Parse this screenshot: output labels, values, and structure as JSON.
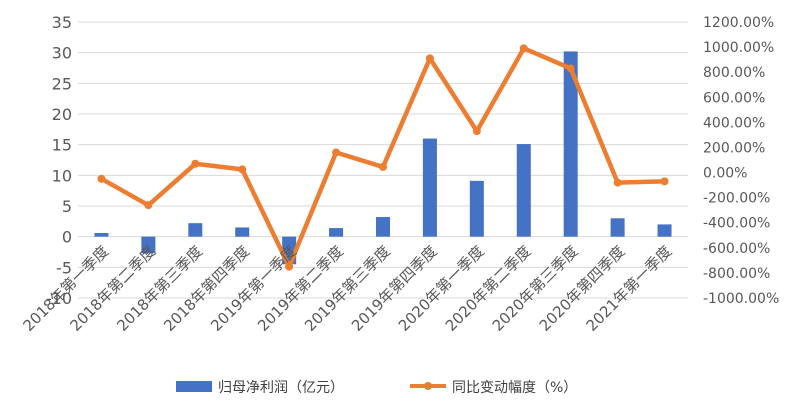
{
  "chart_data": {
    "type": "bar",
    "categories": [
      "2018年第一季度",
      "2018年第二季度",
      "2018年第三季度",
      "2018年第四季度",
      "2019年第一季度",
      "2019年第二季度",
      "2019年第三季度",
      "2019年第四季度",
      "2020年第一季度",
      "2020年第二季度",
      "2020年第三季度",
      "2020年第四季度",
      "2021年第一季度"
    ],
    "series": [
      {
        "name": "归母净利润（亿元）",
        "type": "bar",
        "axis": "left",
        "color": "#4472C4",
        "values": [
          0.6,
          -2.7,
          2.2,
          1.5,
          -4.5,
          1.4,
          3.2,
          16.0,
          9.1,
          15.1,
          30.2,
          3.0,
          2.0
        ]
      },
      {
        "name": "同比变动幅度（%）",
        "type": "line",
        "axis": "right",
        "color": "#ED7D31",
        "values": [
          -50,
          -260,
          70,
          25,
          -750,
          160,
          45,
          910,
          330,
          990,
          830,
          -80,
          -70
        ]
      }
    ],
    "y_left": {
      "min": -10,
      "max": 35,
      "step": 5,
      "tick_labels": [
        "35",
        "30",
        "25",
        "20",
        "15",
        "10",
        "5",
        "0",
        "-5",
        "-10"
      ]
    },
    "y_right": {
      "min": -1000,
      "max": 1200,
      "step": 200,
      "tick_labels": [
        "1200.00%",
        "1000.00%",
        "800.00%",
        "600.00%",
        "400.00%",
        "200.00%",
        "0.00%",
        "-200.00%",
        "-400.00%",
        "-600.00%",
        "-800.00%",
        "-1000.00%"
      ]
    },
    "grid": true,
    "legend_position": "bottom"
  }
}
